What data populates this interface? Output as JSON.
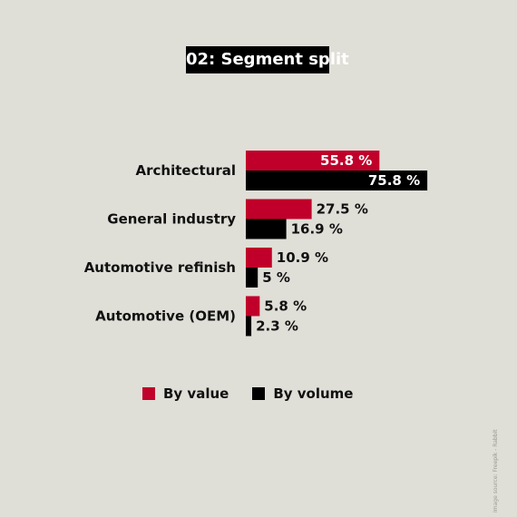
{
  "chart_data": {
    "type": "bar",
    "orientation": "horizontal",
    "title": "02: Segment split",
    "categories": [
      "Architectural",
      "General industry",
      "Automotive refinish",
      "Automotive (OEM)"
    ],
    "series": [
      {
        "name": "By value",
        "values": [
          55.8,
          27.5,
          10.9,
          5.8
        ],
        "color": "#c0002a"
      },
      {
        "name": "By volume",
        "values": [
          75.8,
          16.9,
          5,
          2.3
        ],
        "color": "#000000"
      }
    ],
    "value_suffix": " %",
    "xlim": [
      0,
      100
    ],
    "grid": false,
    "legend_position": "bottom"
  },
  "credit": "Image source: Freepik - Rabbit"
}
